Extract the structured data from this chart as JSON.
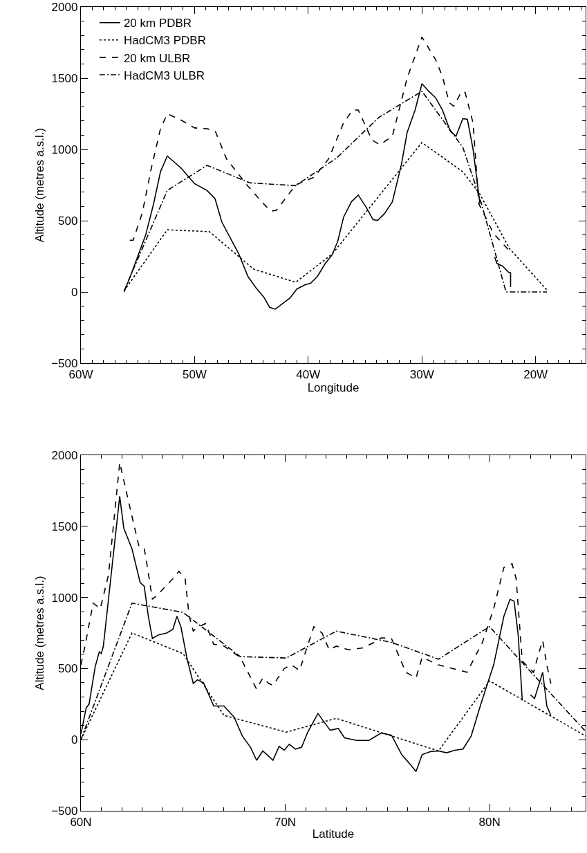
{
  "chart_data": [
    {
      "type": "line",
      "xlabel": "Longitude",
      "ylabel": "Altitude (metres a.s.l.)",
      "xlim": [
        -60,
        -15.6
      ],
      "xticks": [
        {
          "value": -60,
          "label": "60W"
        },
        {
          "value": -50,
          "label": "50W"
        },
        {
          "value": -40,
          "label": "40W"
        },
        {
          "value": -30,
          "label": "30W"
        },
        {
          "value": -20,
          "label": "20W"
        }
      ],
      "ylim": [
        -500,
        2000
      ],
      "yticks": [
        -500,
        0,
        500,
        1000,
        1500,
        2000
      ],
      "legend": "top left",
      "series": [
        {
          "name": "20 km PDBR",
          "color": "#000000",
          "line_style": "solid",
          "x": [
            -56.2,
            -55.6,
            -54.3,
            -53.6,
            -53.0,
            -52.4,
            -51.2,
            -50.0,
            -48.9,
            -48.2,
            -47.6,
            -46.1,
            -45.3,
            -44.6,
            -43.9,
            -43.4,
            -42.9,
            -41.6,
            -41.0,
            -40.3,
            -39.8,
            -39.2,
            -38.5,
            -37.9,
            -37.4,
            -36.9,
            -36.2,
            -35.6,
            -34.9,
            -34.3,
            -33.9,
            -33.3,
            -32.6,
            -31.8,
            -31.3,
            -30.6,
            -30.0,
            -29.4,
            -28.8,
            -28.2,
            -27.5,
            -27.0,
            -26.4,
            -26.0,
            -25.5,
            -24.9,
            -24.2,
            -23.6,
            -23.4,
            -22.9,
            -22.4,
            -22.2,
            -22.2
          ],
          "values": [
            0,
            120,
            400,
            620,
            843,
            954,
            870,
            760,
            712,
            654,
            490,
            265,
            108,
            29,
            -37,
            -108,
            -121,
            -42,
            21,
            50,
            60,
            108,
            200,
            260,
            357,
            523,
            633,
            680,
            594,
            507,
            502,
            549,
            633,
            896,
            1119,
            1277,
            1461,
            1408,
            1363,
            1277,
            1127,
            1093,
            1216,
            1211,
            1001,
            620,
            null,
            244,
            200,
            181,
            139,
            134,
            34
          ]
        },
        {
          "name": "HadCM3 PDBR",
          "color": "#000000",
          "line_style": "dotted",
          "x": [
            -56.2,
            -52.4,
            -48.7,
            -44.8,
            -41.1,
            -37.9,
            -30.0,
            -26.4,
            -24.9,
            -22.3,
            -19.0
          ],
          "values": [
            8,
            436,
            423,
            160,
            68,
            265,
            1048,
            843,
            686,
            305,
            13
          ]
        },
        {
          "name": "20 km ULBR",
          "color": "#000000",
          "line_style": "dashed",
          "x": [
            -55.7,
            -55.4,
            -54.6,
            -53.8,
            -53.0,
            -52.4,
            -51.3,
            -50.0,
            -48.9,
            -48.2,
            -47.2,
            -45.4,
            -44.1,
            -43.3,
            -42.8,
            -41.1,
            -40.5,
            -39.5,
            -38.2,
            -36.9,
            -36.1,
            -35.6,
            -34.4,
            -33.7,
            -32.6,
            -31.3,
            -30.0,
            -28.8,
            -28.2,
            -27.6,
            -27.2,
            -26.5,
            -26.2,
            -25.5,
            -25.0,
            -23.7,
            -22.1
          ],
          "values": [
            363,
            363,
            554,
            870,
            1145,
            1250,
            1211,
            1151,
            1145,
            1132,
            935,
            751,
            633,
            567,
            573,
            751,
            772,
            804,
            935,
            1185,
            1277,
            1277,
            1067,
            1032,
            1093,
            1500,
            1789,
            1631,
            1513,
            1329,
            1303,
            1408,
            1400,
            1185,
            620,
            410,
            270
          ]
        },
        {
          "name": "HadCM3 ULBR",
          "color": "#000000",
          "line_style": "dashdot",
          "x": [
            -56.2,
            -52.4,
            -48.9,
            -45.1,
            -41.1,
            -37.5,
            -33.8,
            -30.0,
            -26.4,
            -24.9,
            -22.6,
            -19.0
          ],
          "values": [
            8,
            712,
            888,
            765,
            746,
            940,
            1224,
            1408,
            1014,
            659,
            0,
            0
          ]
        }
      ]
    },
    {
      "type": "line",
      "xlabel": "Latitude",
      "ylabel": "Altitude (metres a.s.l.)",
      "xlim": [
        60,
        84.7
      ],
      "xticks": [
        {
          "value": 60,
          "label": "60N"
        },
        {
          "value": 70,
          "label": "70N"
        },
        {
          "value": 80,
          "label": "80N"
        }
      ],
      "ylim": [
        -500,
        2000
      ],
      "yticks": [
        -500,
        0,
        500,
        1000,
        1500,
        2000
      ],
      "series": [
        {
          "color": "#000000",
          "line_style": "solid",
          "x": [
            60,
            60.26,
            60.4,
            60.7,
            60.9,
            61.0,
            61.1,
            61.5,
            61.9,
            62.1,
            62.5,
            62.9,
            63.1,
            63.3,
            63.5,
            63.8,
            64.2,
            64.5,
            64.7,
            64.9,
            65.2,
            65.5,
            65.7,
            66.0,
            66.3,
            66.5,
            67.0,
            67.5,
            67.9,
            68.3,
            68.6,
            68.9,
            69.2,
            69.4,
            69.7,
            69.95,
            70.2,
            70.5,
            70.8,
            71.1,
            71.6,
            72.0,
            72.2,
            72.6,
            72.9,
            73.5,
            74.1,
            74.3,
            74.7,
            75.2,
            75.7,
            76.1,
            76.4,
            76.7,
            77.1,
            77.5,
            77.9,
            78.3,
            78.7,
            79.1,
            79.6,
            80.2,
            80.7,
            81.0,
            81.2,
            81.4,
            81.6,
            81.8,
            82.0,
            82.2,
            82.6,
            82.8,
            83.0
          ],
          "values": [
            39,
            224,
            250,
            513,
            618,
            605,
            658,
            1184,
            1711,
            1487,
            1342,
            1105,
            1079,
            868,
            711,
            737,
            750,
            776,
            868,
            790,
            566,
            395,
            421,
            400,
            303,
            237,
            237,
            158,
            26,
            -53,
            -145,
            -79,
            -118,
            -145,
            -47,
            -74,
            -32,
            -66,
            -53,
            53,
            184,
            105,
            66,
            79,
            13,
            -5,
            -5,
            13,
            47,
            32,
            -105,
            -171,
            -224,
            -105,
            -84,
            -79,
            -92,
            -74,
            -66,
            26,
            263,
            526,
            868,
            987,
            974,
            737,
            276,
            null,
            316,
            289,
            474,
            237,
            171
          ]
        },
        {
          "color": "#000000",
          "line_style": "dotted",
          "x": [
            60,
            62.5,
            65.0,
            67.0,
            70.05,
            72.5,
            77.5,
            80.0,
            84.7
          ],
          "values": [
            0,
            750,
            605,
            171,
            53,
            150,
            -79,
            413,
            26
          ]
        },
        {
          "color": "#000000",
          "line_style": "dashed",
          "x": [
            60,
            60.2,
            60.6,
            60.95,
            61.35,
            61.9,
            62.4,
            62.85,
            63.1,
            63.2,
            63.5,
            63.8,
            64.5,
            64.8,
            65.1,
            65.3,
            65.5,
            65.7,
            66.1,
            66.5,
            67.0,
            67.8,
            68.6,
            68.9,
            69.2,
            69.4,
            69.95,
            70.3,
            70.7,
            71.4,
            71.8,
            72.15,
            72.5,
            73.1,
            73.8,
            74.35,
            74.7,
            75.2,
            75.9,
            76.4,
            76.7,
            77.5,
            78.2,
            78.9,
            79.65,
            80.2,
            80.7,
            81.1,
            81.3,
            81.6,
            82.15,
            82.4,
            82.6,
            82.8,
            83.0
          ],
          "values": [
            526,
            658,
            960,
            921,
            1158,
            1948,
            1632,
            1355,
            1342,
            1263,
            987,
            1026,
            1132,
            1184,
            1132,
            868,
            763,
            790,
            816,
            671,
            658,
            579,
            355,
            434,
            395,
            382,
            500,
            526,
            487,
            795,
            750,
            632,
            658,
            632,
            645,
            684,
            716,
            711,
            474,
            434,
            579,
            526,
            500,
            474,
            684,
            921,
            1211,
            1237,
            1132,
            553,
            474,
            605,
            697,
            526,
            395
          ]
        },
        {
          "color": "#000000",
          "line_style": "dashdot",
          "x": [
            60,
            62.5,
            65.0,
            67.8,
            70.05,
            72.5,
            75.2,
            77.5,
            80.0,
            81.7,
            84.7
          ],
          "values": [
            0,
            960,
            895,
            584,
            574,
            763,
            684,
            566,
            795,
            526,
            58
          ]
        }
      ]
    }
  ]
}
